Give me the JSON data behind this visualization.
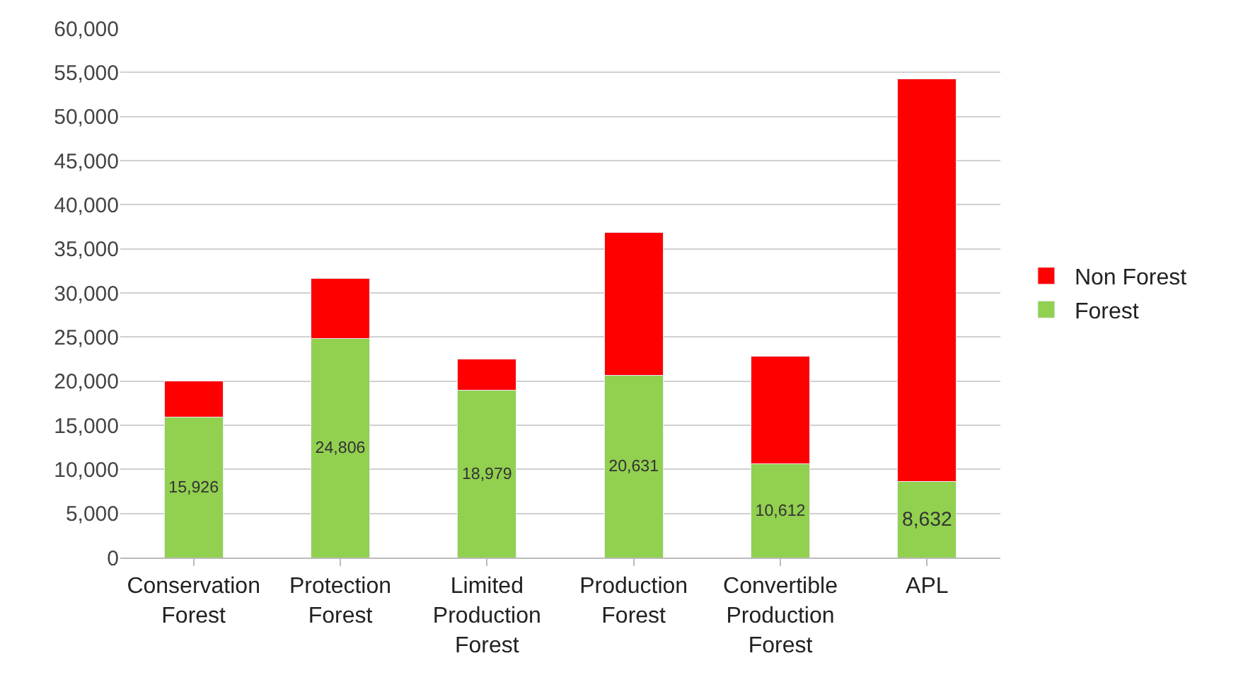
{
  "chart_data": {
    "type": "bar",
    "stacked": true,
    "categories": [
      "Conservation Forest",
      "Protection Forest",
      "Limited Production Forest",
      "Production Forest",
      "Convertible Production Forest",
      "APL"
    ],
    "series": [
      {
        "name": "Forest",
        "color": "#92d050",
        "values": [
          15926,
          24806,
          18979,
          20631,
          10612,
          8632
        ],
        "value_labels": [
          "15,926",
          "24,806",
          "18,979",
          "20,631",
          "10,612",
          "8,632"
        ]
      },
      {
        "name": "Non Forest",
        "color": "#ff0000",
        "values": [
          4100,
          6800,
          3500,
          16200,
          12200,
          45600
        ]
      }
    ],
    "ylim": [
      0,
      60000
    ],
    "yticks": [
      {
        "value": 0,
        "label": "0"
      },
      {
        "value": 5000,
        "label": "5,000"
      },
      {
        "value": 10000,
        "label": "10,000"
      },
      {
        "value": 15000,
        "label": "15,000"
      },
      {
        "value": 20000,
        "label": "20,000"
      },
      {
        "value": 25000,
        "label": "25,000"
      },
      {
        "value": 30000,
        "label": "30,000"
      },
      {
        "value": 35000,
        "label": "35,000"
      },
      {
        "value": 40000,
        "label": "40,000"
      },
      {
        "value": 45000,
        "label": "45,000"
      },
      {
        "value": 50000,
        "label": "50,000"
      },
      {
        "value": 55000,
        "label": "55,000"
      },
      {
        "value": 60000,
        "label": "60,000"
      }
    ],
    "grid": "y",
    "legend": "right"
  }
}
